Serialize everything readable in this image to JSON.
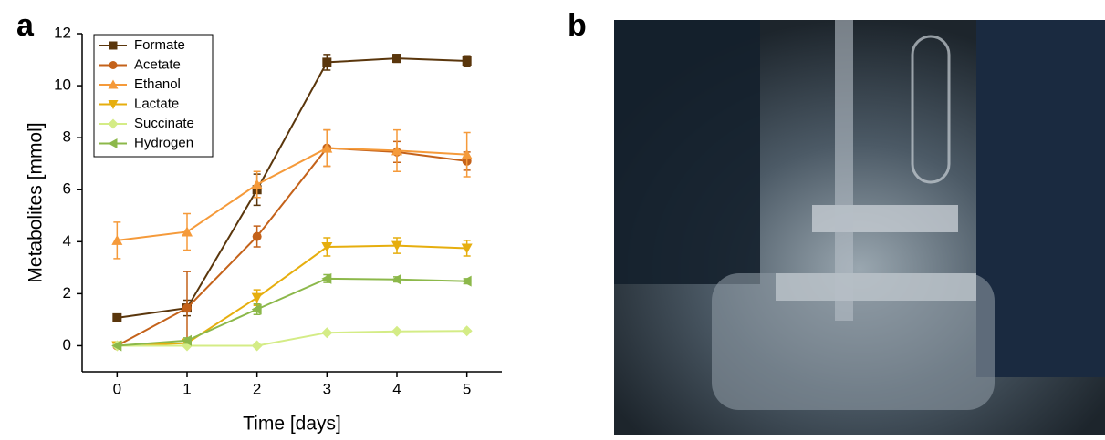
{
  "chart_data": {
    "type": "line",
    "panel_label": "a",
    "xlabel": "Time [days]",
    "ylabel": "Metabolites [mmol]",
    "x": [
      0,
      1,
      2,
      3,
      4,
      5
    ],
    "xlim": [
      -0.5,
      5.5
    ],
    "xticks": [
      0,
      1,
      2,
      3,
      4,
      5
    ],
    "ylim": [
      -1,
      12
    ],
    "yticks": [
      0,
      2,
      4,
      6,
      8,
      10,
      12
    ],
    "legend": "upper left",
    "series": [
      {
        "name": "Formate",
        "color": "#5a360c",
        "marker": "square",
        "values": [
          1.07,
          1.45,
          6.0,
          10.9,
          11.05,
          10.95
        ],
        "errors": [
          0.05,
          0.3,
          0.6,
          0.3,
          0.15,
          0.2
        ]
      },
      {
        "name": "Acetate",
        "color": "#c4621a",
        "marker": "circle",
        "values": [
          0,
          1.45,
          4.2,
          7.6,
          7.45,
          7.1
        ],
        "errors": [
          0,
          1.4,
          0.4,
          0.7,
          0.4,
          0.35
        ]
      },
      {
        "name": "Ethanol",
        "color": "#f59a3a",
        "marker": "triangle-up",
        "values": [
          4.05,
          4.38,
          6.2,
          7.6,
          7.5,
          7.35
        ],
        "errors": [
          0.7,
          0.7,
          0.5,
          0.7,
          0.8,
          0.85
        ]
      },
      {
        "name": "Lactate",
        "color": "#e6ae0e",
        "marker": "triangle-down",
        "values": [
          0,
          0.1,
          1.85,
          3.8,
          3.85,
          3.75
        ],
        "errors": [
          0,
          0.1,
          0.3,
          0.35,
          0.3,
          0.3
        ]
      },
      {
        "name": "Succinate",
        "color": "#d4ec86",
        "marker": "diamond",
        "values": [
          0,
          0,
          0,
          0.5,
          0.55,
          0.57
        ],
        "errors": [
          0,
          0,
          0,
          0,
          0,
          0
        ]
      },
      {
        "name": "Hydrogen",
        "color": "#8cb84a",
        "marker": "triangle-left",
        "values": [
          0,
          0.2,
          1.4,
          2.58,
          2.55,
          2.48
        ],
        "errors": [
          0,
          0.1,
          0.2,
          0.15,
          0.1,
          0.1
        ]
      }
    ]
  },
  "photo": {
    "panel_label": "b"
  }
}
